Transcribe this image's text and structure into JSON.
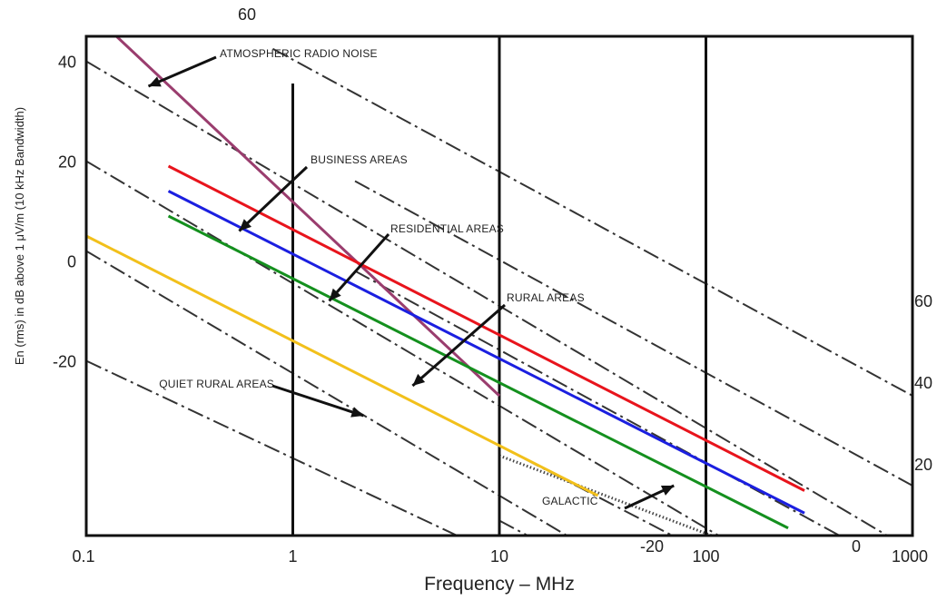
{
  "chart_data": {
    "type": "line",
    "title": "",
    "xlabel": "Frequency – MHz",
    "ylabel": "En (rms) in dB above 1 μV/m (10 kHz Bandwidth)",
    "x_scale": "log",
    "xlim": [
      0.1,
      1000
    ],
    "ylim": [
      -55,
      45
    ],
    "x_tick_labels": [
      "0.1",
      "1",
      "10",
      "100",
      "1000"
    ],
    "y_tick_labels": [
      "40",
      "20",
      "0",
      "-20"
    ],
    "y_ticks": [
      40,
      20,
      0,
      -20
    ],
    "grid": "vertical lines at 1, 10 and 100 MHz",
    "series": [
      {
        "name": "ATMOSPHERIC RADIO NOISE",
        "color": "#9a3d6e",
        "x": [
          0.14,
          10
        ],
        "y": [
          45,
          -27
        ]
      },
      {
        "name": "BUSINESS AREAS",
        "color": "#e8141c",
        "x": [
          0.25,
          300
        ],
        "y": [
          19,
          -46
        ]
      },
      {
        "name": "RESIDENTIAL AREAS",
        "color": "#1b1fe0",
        "x": [
          0.25,
          300
        ],
        "y": [
          14,
          -50.5
        ]
      },
      {
        "name": "RURAL AREAS",
        "color": "#14901e",
        "x": [
          0.25,
          250
        ],
        "y": [
          9,
          -53.5
        ]
      },
      {
        "name": "QUIET RURAL AREAS",
        "color": "#f2c01b",
        "x": [
          0.1,
          30
        ],
        "y": [
          5,
          -47
        ]
      }
    ],
    "dashed_reference_lines": [
      {
        "label": "",
        "x": [
          0.1,
          1000
        ],
        "y": [
          40,
          -58
        ]
      },
      {
        "label": "",
        "x": [
          0.1,
          1000
        ],
        "y": [
          20,
          -78
        ]
      },
      {
        "label": "",
        "x": [
          0.1,
          1000
        ],
        "y": [
          2,
          -96
        ]
      },
      {
        "label": "",
        "x": [
          0.1,
          10
        ],
        "y": [
          -20,
          -59
        ]
      },
      {
        "label": "60",
        "x": [
          0.8,
          1000
        ],
        "y": [
          42.5,
          -27
        ]
      },
      {
        "label": "40",
        "x": [
          2.0,
          1000
        ],
        "y": [
          16,
          -45
        ]
      },
      {
        "label": "20",
        "x": [
          2.0,
          1000
        ],
        "y": [
          -2,
          -63
        ]
      },
      {
        "label": "0",
        "x": [
          10,
          1000
        ],
        "y": [
          -37,
          -80
        ]
      },
      {
        "label": "-20",
        "x": [
          10,
          1000
        ],
        "y": [
          -52,
          -96
        ]
      }
    ],
    "galactic": {
      "label": "GALACTIC",
      "x": [
        10,
        300
      ],
      "y": [
        -39,
        -62
      ]
    },
    "annotations": [
      {
        "text": "ATMOSPHERIC RADIO NOISE",
        "arrow_to": [
          0.2,
          35
        ]
      },
      {
        "text": "BUSINESS AREAS",
        "arrow_to": [
          0.55,
          6
        ]
      },
      {
        "text": "RESIDENTIAL AREAS",
        "arrow_to": [
          1.5,
          -8
        ]
      },
      {
        "text": "RURAL AREAS",
        "arrow_to": [
          3.8,
          -25
        ]
      },
      {
        "text": "QUIET RURAL AREAS",
        "arrow_to": [
          2.2,
          -31
        ]
      },
      {
        "text": "GALACTIC",
        "arrow_to": [
          70,
          -45
        ]
      }
    ]
  }
}
